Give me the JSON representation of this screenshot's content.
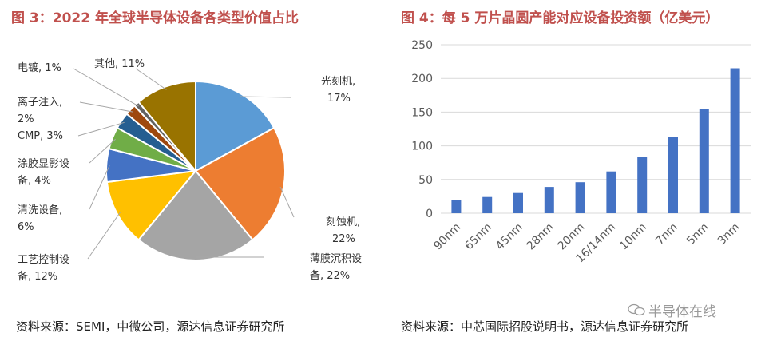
{
  "left": {
    "title": "图 3：2022 年全球半导体设备各类型价值占比",
    "source": "资料来源：SEMI，中微公司，源达信息证券研究所"
  },
  "right": {
    "title": "图 4：每 5 万片晶圆产能对应设备投资额（亿美元）",
    "source": "资料来源：中芯国际招股说明书，源达信息证券研究所"
  },
  "watermark": "半导体在线",
  "chart_data": [
    {
      "type": "pie",
      "title": "",
      "slices": [
        {
          "label": "光刻机,",
          "pct_text": "17%",
          "value": 17,
          "color": "#5b9bd5"
        },
        {
          "label": "刻蚀机,",
          "pct_text": "22%",
          "value": 22,
          "color": "#ed7d31"
        },
        {
          "label": "薄膜沉积设",
          "pct_text": "备, 22%",
          "value": 22,
          "color": "#a5a5a5"
        },
        {
          "label": "工艺控制设",
          "pct_text": "备, 12%",
          "value": 12,
          "color": "#ffc000"
        },
        {
          "label": "清洗设备,",
          "pct_text": "6%",
          "value": 6,
          "color": "#4472c4"
        },
        {
          "label": "涂胶显影设",
          "pct_text": "备, 4%",
          "value": 4,
          "color": "#70ad47"
        },
        {
          "label": "CMP, 3%",
          "pct_text": "",
          "value": 3,
          "color": "#255e91"
        },
        {
          "label": "离子注入,",
          "pct_text": "2%",
          "value": 2,
          "color": "#9e480e"
        },
        {
          "label": "电镀, 1%",
          "pct_text": "",
          "value": 1,
          "color": "#636363"
        },
        {
          "label": "其他, 11%",
          "pct_text": "",
          "value": 11,
          "color": "#997300"
        }
      ]
    },
    {
      "type": "bar",
      "title": "",
      "categories": [
        "90nm",
        "65nm",
        "45nm",
        "28nm",
        "20nm",
        "16/14nm",
        "10nm",
        "7nm",
        "5nm",
        "3nm"
      ],
      "values": [
        20,
        24,
        30,
        39,
        46,
        62,
        83,
        113,
        155,
        215
      ],
      "ylim": [
        0,
        250
      ],
      "yticks": [
        "0",
        "50",
        "100",
        "150",
        "200",
        "250"
      ],
      "grid": true,
      "color": "#4472c4"
    }
  ]
}
